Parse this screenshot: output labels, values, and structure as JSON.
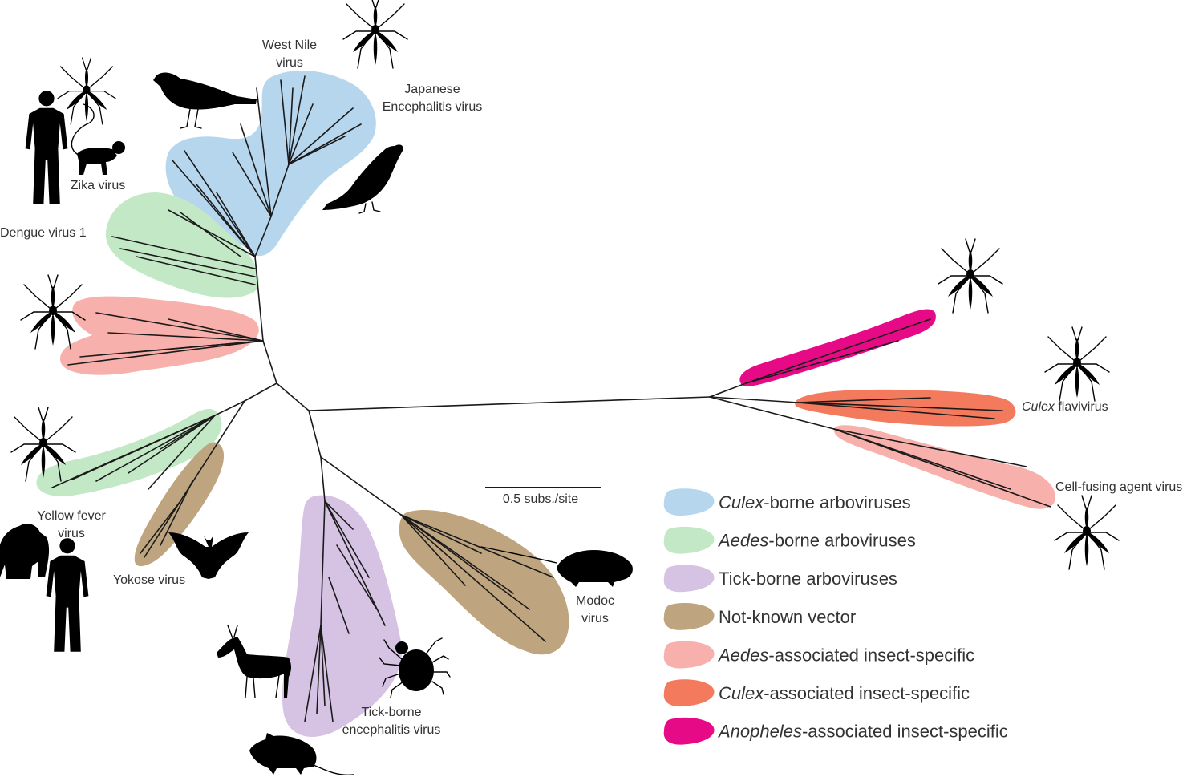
{
  "labels": {
    "west_nile_1": "West Nile",
    "west_nile_2": "virus",
    "japanese_1": "Japanese",
    "japanese_2": "Encephalitis virus",
    "zika": "Zika virus",
    "dengue": "Dengue virus 1",
    "yellow_fever_1": "Yellow fever",
    "yellow_fever_2": "virus",
    "yokose": "Yokose virus",
    "tbe_1": "Tick-borne",
    "tbe_2": "encephalitis virus",
    "modoc_1": "Modoc",
    "modoc_2": "virus",
    "culex_flavi_italic": "Culex",
    "culex_flavi_rest": " flavivirus",
    "cfav": "Cell-fusing agent virus"
  },
  "scale_bar": {
    "label": "0.5 subs./site",
    "value": 0.5
  },
  "legend": [
    {
      "italic": "Culex",
      "rest": "-borne arboviruses",
      "color": "#b6d6ee"
    },
    {
      "italic": "Aedes",
      "rest": "-borne arboviruses",
      "color": "#c3e8c6"
    },
    {
      "italic": "",
      "rest": "Tick-borne arboviruses",
      "color": "#d6c3e3"
    },
    {
      "italic": "",
      "rest": "Not-known vector",
      "color": "#bea57f"
    },
    {
      "italic": "Aedes",
      "rest": "-associated insect-specific",
      "color": "#f7b0ab"
    },
    {
      "italic": "Culex",
      "rest": "-associated insect-specific",
      "color": "#f47a5e"
    },
    {
      "italic": "Anopheles",
      "rest": "-associated insect-specific",
      "color": "#e60a86"
    }
  ],
  "icons": {
    "mosquito": "mosquito-icon",
    "bird": "bird-icon",
    "crow": "crow-icon",
    "human": "human-icon",
    "monkey": "monkey-icon",
    "gorilla": "gorilla-icon",
    "bat": "bat-icon",
    "deer": "deer-icon",
    "tick": "tick-icon",
    "mouse": "mouse-icon",
    "rat": "rat-icon"
  }
}
